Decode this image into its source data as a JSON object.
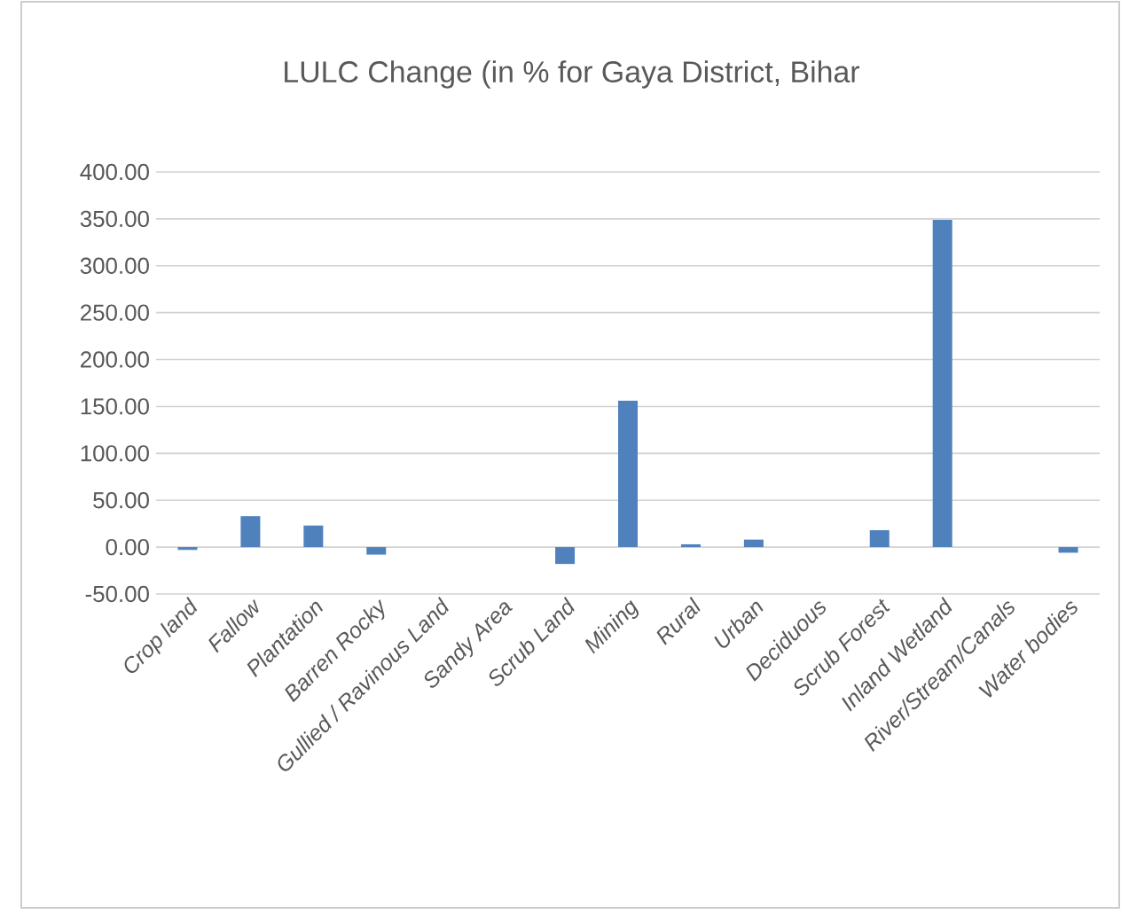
{
  "chart_data": {
    "type": "bar",
    "title": "LULC Change  (in % for Gaya District, Bihar",
    "categories": [
      "Crop land",
      "Fallow",
      "Plantation",
      "Barren Rocky",
      "Gullied / Ravinous Land",
      "Sandy Area",
      "Scrub Land",
      "Mining",
      "Rural",
      "Urban",
      "Deciduous",
      "Scrub Forest",
      "Inland Wetland",
      "River/Stream/Canals",
      "Water bodies"
    ],
    "values": [
      -3,
      33,
      23,
      -8,
      0,
      0,
      -18,
      156,
      3,
      8,
      0,
      18,
      349,
      0,
      -6
    ],
    "color": "#4f81bd",
    "ylim": [
      -50,
      400
    ],
    "yticks": [
      {
        "value": -50,
        "label": "-50.00"
      },
      {
        "value": 0,
        "label": "0.00"
      },
      {
        "value": 50,
        "label": "50.00"
      },
      {
        "value": 100,
        "label": "100.00"
      },
      {
        "value": 150,
        "label": "150.00"
      },
      {
        "value": 200,
        "label": "200.00"
      },
      {
        "value": 250,
        "label": "250.00"
      },
      {
        "value": 300,
        "label": "300.00"
      },
      {
        "value": 350,
        "label": "350.00"
      },
      {
        "value": 400,
        "label": "400.00"
      }
    ],
    "grid": true
  }
}
